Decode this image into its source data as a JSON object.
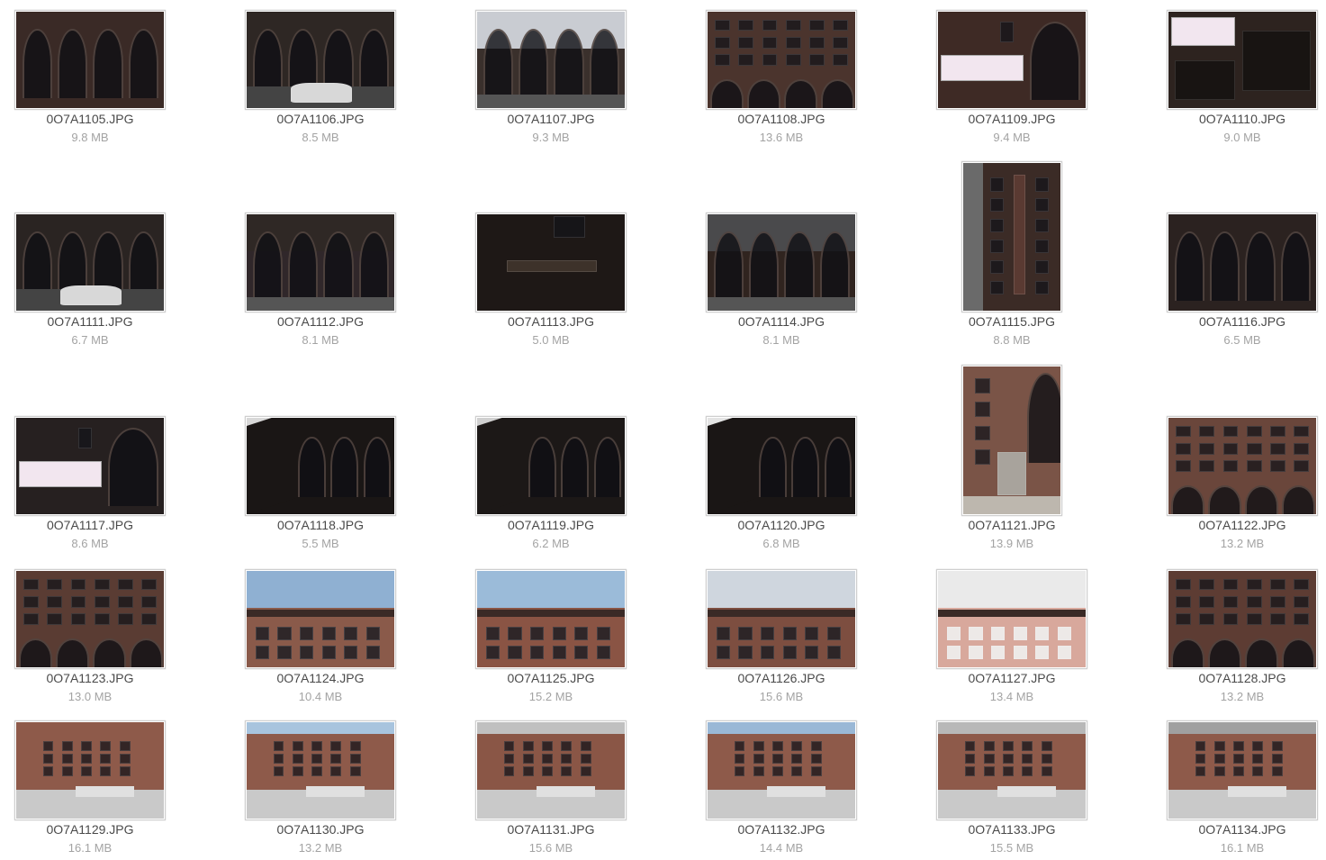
{
  "files": [
    {
      "name": "0O7A1105.JPG",
      "size": "9.8 MB",
      "orientation": "landscape",
      "scene": "dark-arches",
      "sky": "#6b6b70",
      "wall": "#3a2a26"
    },
    {
      "name": "0O7A1106.JPG",
      "size": "8.5 MB",
      "orientation": "landscape",
      "scene": "dark-arches-car",
      "sky": "#555",
      "wall": "#2e2724"
    },
    {
      "name": "0O7A1107.JPG",
      "size": "9.3 MB",
      "orientation": "landscape",
      "scene": "dark-arches-street",
      "sky": "#c9ccd2",
      "wall": "#3a302c"
    },
    {
      "name": "0O7A1108.JPG",
      "size": "13.6 MB",
      "orientation": "landscape",
      "scene": "brick-windows",
      "sky": "#4a3630",
      "wall": "#4b342d"
    },
    {
      "name": "0O7A1109.JPG",
      "size": "9.4 MB",
      "orientation": "landscape",
      "scene": "arch-sign",
      "sky": "#3a2622",
      "wall": "#3e2a25"
    },
    {
      "name": "0O7A1110.JPG",
      "size": "9.0 MB",
      "orientation": "landscape",
      "scene": "banner",
      "sky": "#2c2420",
      "wall": "#2d231f"
    },
    {
      "name": "0O7A1111.JPG",
      "size": "6.7 MB",
      "orientation": "landscape",
      "scene": "dark-arches-car",
      "sky": "#2a2624",
      "wall": "#2a2422"
    },
    {
      "name": "0O7A1112.JPG",
      "size": "8.1 MB",
      "orientation": "landscape",
      "scene": "dark-arches-street",
      "sky": "#2f2825",
      "wall": "#30272a"
    },
    {
      "name": "0O7A1113.JPG",
      "size": "5.0 MB",
      "orientation": "landscape",
      "scene": "very-dark",
      "sky": "#231c1a",
      "wall": "#1e1816"
    },
    {
      "name": "0O7A1114.JPG",
      "size": "8.1 MB",
      "orientation": "landscape",
      "scene": "dark-arches-street",
      "sky": "#4a4a4c",
      "wall": "#30241f"
    },
    {
      "name": "0O7A1115.JPG",
      "size": "8.8 MB",
      "orientation": "portrait",
      "scene": "tower-sign",
      "sky": "#3a3432",
      "wall": "#3b2b26"
    },
    {
      "name": "0O7A1116.JPG",
      "size": "6.5 MB",
      "orientation": "landscape",
      "scene": "dark-arches",
      "sky": "#2d2624",
      "wall": "#2b2220"
    },
    {
      "name": "0O7A1117.JPG",
      "size": "8.6 MB",
      "orientation": "landscape",
      "scene": "arch-sign",
      "sky": "#2a2220",
      "wall": "#262020"
    },
    {
      "name": "0O7A1118.JPG",
      "size": "5.5 MB",
      "orientation": "landscape",
      "scene": "angle-dark",
      "sky": "#d8d8d8",
      "wall": "#1a1615"
    },
    {
      "name": "0O7A1119.JPG",
      "size": "6.2 MB",
      "orientation": "landscape",
      "scene": "angle-dark",
      "sky": "#d0d0d0",
      "wall": "#1c1817"
    },
    {
      "name": "0O7A1120.JPG",
      "size": "6.8 MB",
      "orientation": "landscape",
      "scene": "angle-dark",
      "sky": "#e4e4e4",
      "wall": "#1a1615"
    },
    {
      "name": "0O7A1121.JPG",
      "size": "13.9 MB",
      "orientation": "portrait",
      "scene": "portrait-door",
      "sky": "#6b4a40",
      "wall": "#7a5447"
    },
    {
      "name": "0O7A1122.JPG",
      "size": "13.2 MB",
      "orientation": "landscape",
      "scene": "brick-windows",
      "sky": "#6a463b",
      "wall": "#6a463b"
    },
    {
      "name": "0O7A1123.JPG",
      "size": "13.0 MB",
      "orientation": "landscape",
      "scene": "brick-windows",
      "sky": "#5a3c33",
      "wall": "#5a3c33"
    },
    {
      "name": "0O7A1124.JPG",
      "size": "10.4 MB",
      "orientation": "landscape",
      "scene": "sky-cornice",
      "sky": "#8fb0d2",
      "wall": "#8a5a4a"
    },
    {
      "name": "0O7A1125.JPG",
      "size": "15.2 MB",
      "orientation": "landscape",
      "scene": "sky-cornice",
      "sky": "#9bbbd9",
      "wall": "#8a5444"
    },
    {
      "name": "0O7A1126.JPG",
      "size": "15.6 MB",
      "orientation": "landscape",
      "scene": "sky-cornice",
      "sky": "#cfd6de",
      "wall": "#7d4e40"
    },
    {
      "name": "0O7A1127.JPG",
      "size": "13.4 MB",
      "orientation": "landscape",
      "scene": "sky-cornice-light",
      "sky": "#eaeaea",
      "wall": "#d8a89c"
    },
    {
      "name": "0O7A1128.JPG",
      "size": "13.2 MB",
      "orientation": "landscape",
      "scene": "brick-windows",
      "sky": "#5d3c33",
      "wall": "#5d3c33"
    },
    {
      "name": "0O7A1129.JPG",
      "size": "16.1 MB",
      "orientation": "landscape",
      "scene": "parking",
      "sky": "#8e5a4a",
      "wall": "#8e5a4a"
    },
    {
      "name": "0O7A1130.JPG",
      "size": "13.2 MB",
      "orientation": "landscape",
      "scene": "parking",
      "sky": "#a8c4de",
      "wall": "#8e5a4a"
    },
    {
      "name": "0O7A1131.JPG",
      "size": "15.6 MB",
      "orientation": "landscape",
      "scene": "parking",
      "sky": "#c0c0c0",
      "wall": "#8a5646"
    },
    {
      "name": "0O7A1132.JPG",
      "size": "14.4 MB",
      "orientation": "landscape",
      "scene": "parking",
      "sky": "#9ab8d6",
      "wall": "#8e5a4a"
    },
    {
      "name": "0O7A1133.JPG",
      "size": "15.5 MB",
      "orientation": "landscape",
      "scene": "parking",
      "sky": "#b8b8b8",
      "wall": "#8e5a4a"
    },
    {
      "name": "0O7A1134.JPG",
      "size": "16.1 MB",
      "orientation": "landscape",
      "scene": "parking",
      "sky": "#a0a0a0",
      "wall": "#8e5a4a"
    }
  ]
}
